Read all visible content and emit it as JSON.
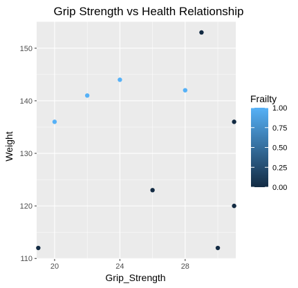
{
  "chart_data": {
    "type": "scatter",
    "title": "Grip Strength vs Health Relationship",
    "xlabel": "Grip_Strength",
    "ylabel": "Weight",
    "xlim": [
      18.9,
      31.1
    ],
    "ylim": [
      109.9,
      155.1
    ],
    "x_ticks": [
      20,
      24,
      28
    ],
    "x_tick_labels": [
      "20",
      "24",
      "28"
    ],
    "y_ticks": [
      110,
      120,
      130,
      140,
      150
    ],
    "y_tick_labels": [
      "110",
      "120",
      "130",
      "140",
      "150"
    ],
    "grid": true,
    "points": [
      {
        "x": 19,
        "y": 112,
        "frailty": 0
      },
      {
        "x": 20,
        "y": 136,
        "frailty": 1
      },
      {
        "x": 22,
        "y": 141,
        "frailty": 1
      },
      {
        "x": 24,
        "y": 144,
        "frailty": 1
      },
      {
        "x": 26,
        "y": 123,
        "frailty": 0
      },
      {
        "x": 28,
        "y": 142,
        "frailty": 1
      },
      {
        "x": 29,
        "y": 153,
        "frailty": 0
      },
      {
        "x": 30,
        "y": 112,
        "frailty": 0
      },
      {
        "x": 31,
        "y": 136,
        "frailty": 0
      },
      {
        "x": 31,
        "y": 120,
        "frailty": 0
      }
    ],
    "legend": {
      "title": "Frailty",
      "placement": "right",
      "ticks": [
        0,
        0.25,
        0.5,
        0.75,
        1
      ],
      "tick_labels": [
        "0.00",
        "0.25",
        "0.50",
        "0.75",
        "1.00"
      ],
      "color_low": "#132b43",
      "color_high": "#56b1f7"
    },
    "panel_background": "#ebebeb",
    "grid_color": "#ffffff"
  }
}
